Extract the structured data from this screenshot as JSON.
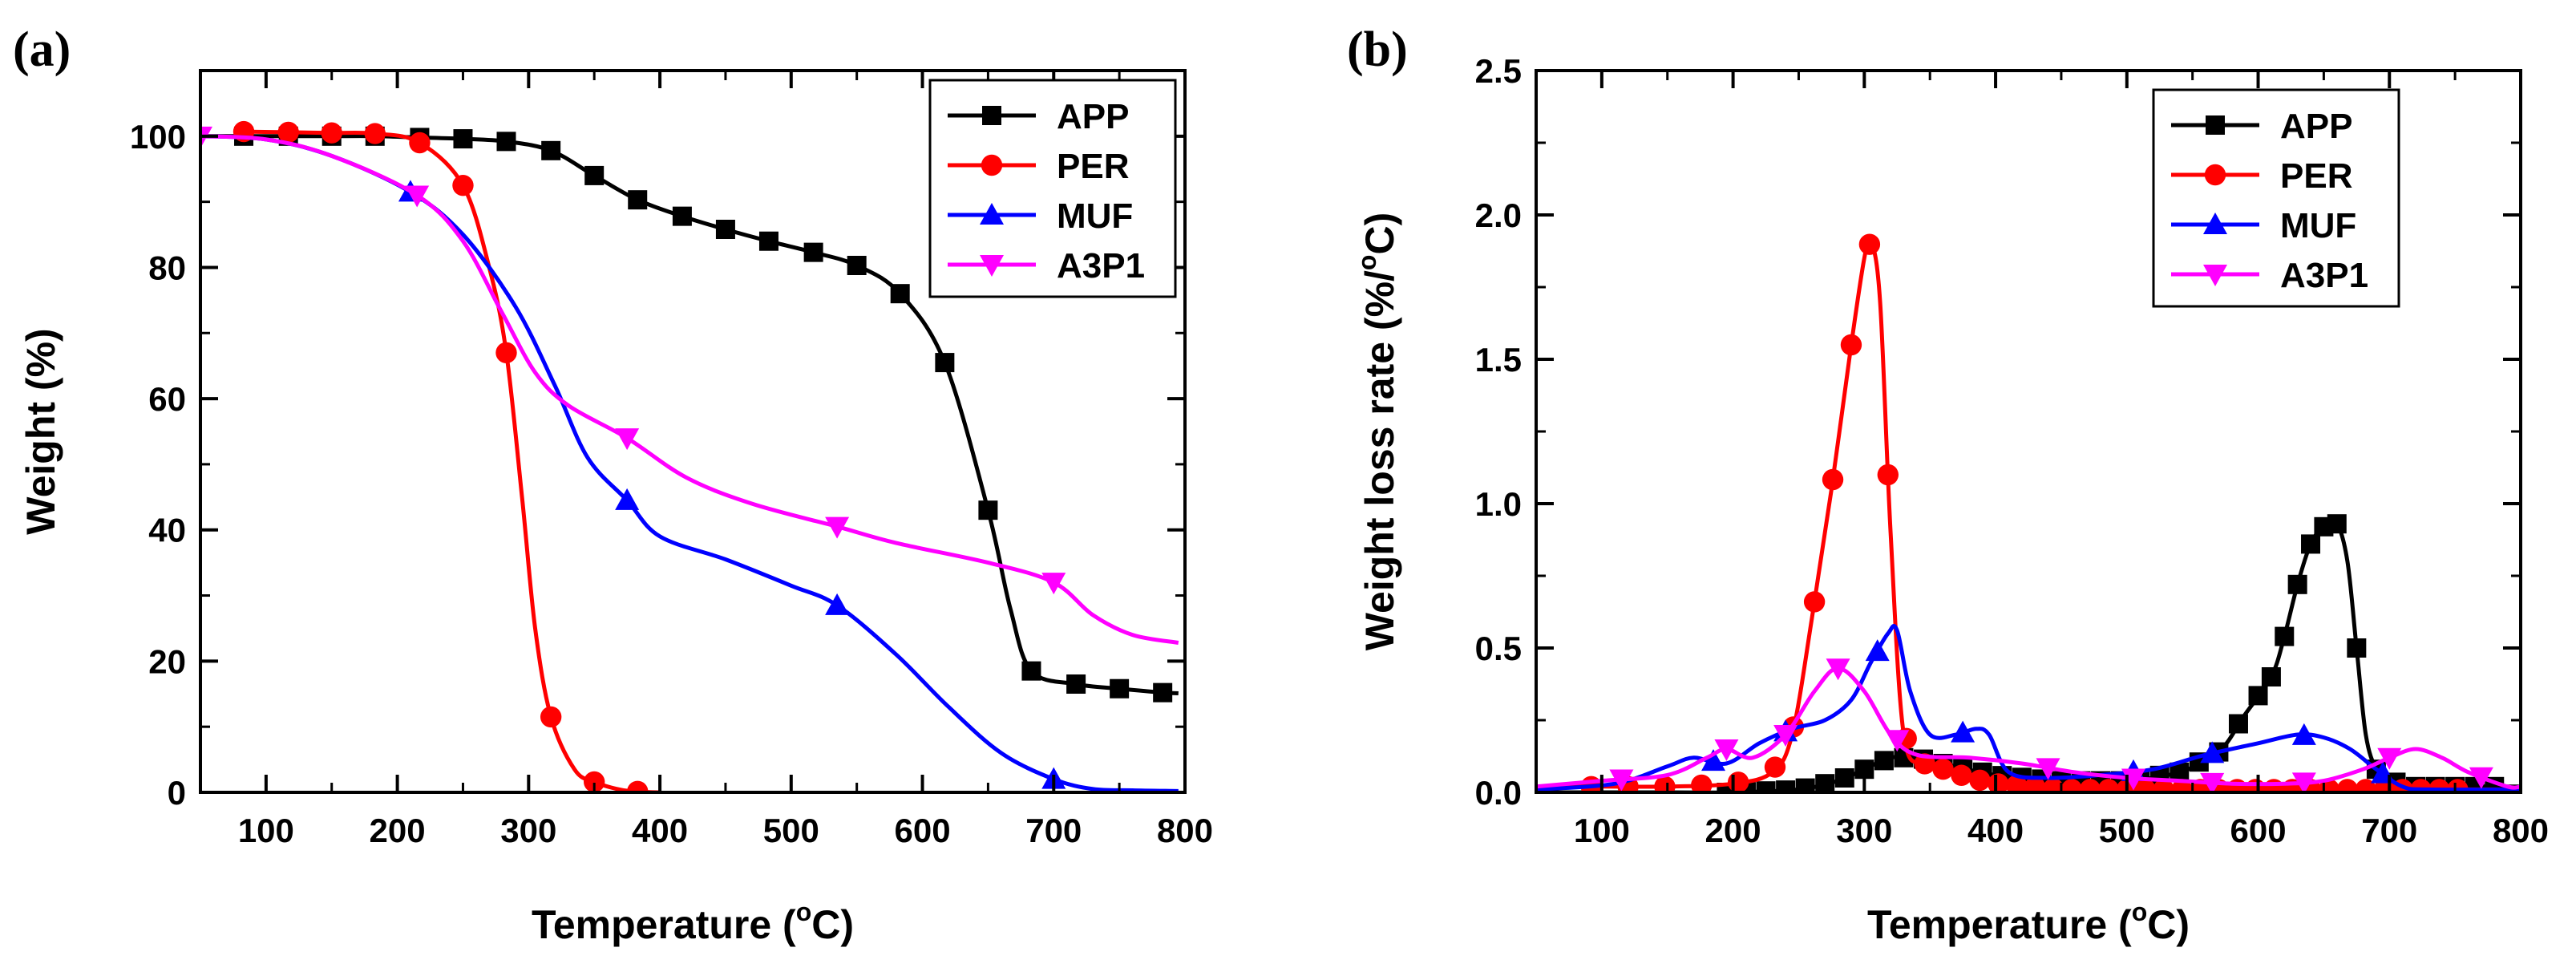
{
  "figure": {
    "panels": [
      {
        "panel_label": "(a)"
      },
      {
        "panel_label": "(b)"
      }
    ]
  },
  "chart_data": [
    {
      "id": "a",
      "type": "line",
      "title": "",
      "panel_label": "(a)",
      "xlabel": "Temperature (°C)",
      "xlabel_parts": [
        "Temperature (",
        "o",
        "C)"
      ],
      "ylabel": "Weight (%)",
      "xlim": [
        50,
        800
      ],
      "ylim": [
        0,
        110
      ],
      "xticks": [
        100,
        200,
        300,
        400,
        500,
        600,
        700,
        800
      ],
      "yticks": [
        0,
        20,
        40,
        60,
        80,
        100
      ],
      "xtick_labels": [
        "100",
        "200",
        "300",
        "400",
        "500",
        "600",
        "700",
        "800"
      ],
      "ytick_labels": [
        "0",
        "20",
        "40",
        "60",
        "80",
        "100"
      ],
      "legend_position": "top-right",
      "series": [
        {
          "name": "APP",
          "color": "#000000",
          "marker": "square",
          "x": [
            50,
            83,
            117,
            150,
            183,
            217,
            250,
            283,
            317,
            350,
            383,
            417,
            450,
            483,
            517,
            550,
            583,
            617,
            650,
            667,
            683,
            717,
            750,
            783,
            795
          ],
          "y": [
            100,
            100,
            100,
            100,
            100,
            99.8,
            99.6,
            99.2,
            97.8,
            94,
            90.3,
            87.8,
            85.8,
            84,
            82.3,
            80.3,
            76,
            65.5,
            43,
            28,
            18.5,
            16.5,
            15.8,
            15.2,
            15.1
          ],
          "marker_x": [
            83,
            117,
            150,
            183,
            217,
            250,
            283,
            317,
            350,
            383,
            417,
            450,
            483,
            517,
            550,
            583,
            617,
            650,
            683,
            717,
            750,
            783
          ]
        },
        {
          "name": "PER",
          "color": "#ff0000",
          "marker": "circle",
          "x": [
            83,
            117,
            150,
            183,
            217,
            250,
            270,
            283,
            295,
            305,
            317,
            335,
            350,
            370,
            385,
            400
          ],
          "y": [
            100.7,
            100.6,
            100.5,
            100.4,
            99,
            92.5,
            80,
            67,
            45,
            25,
            11.5,
            3.5,
            1.6,
            0.4,
            0.1,
            0
          ],
          "marker_x": [
            83,
            117,
            150,
            183,
            217,
            250,
            283,
            317,
            350,
            383
          ]
        },
        {
          "name": "MUF",
          "color": "#0000ff",
          "marker": "triangle-up",
          "x": [
            50,
            100,
            150,
            210,
            250,
            290,
            320,
            345,
            375,
            400,
            450,
            500,
            535,
            580,
            620,
            660,
            700,
            730,
            760,
            795
          ],
          "y": [
            100,
            99.5,
            97,
            91.5,
            85,
            74,
            62,
            51,
            44.5,
            39,
            35.5,
            31.5,
            28.5,
            21,
            13,
            6,
            2,
            0.5,
            0.3,
            0.2
          ],
          "marker_x": [
            210,
            375,
            535,
            700
          ]
        },
        {
          "name": "A3P1",
          "color": "#ff00ff",
          "marker": "triangle-down",
          "x": [
            50,
            100,
            150,
            215,
            250,
            280,
            305,
            330,
            375,
            420,
            470,
            535,
            580,
            650,
            700,
            730,
            760,
            795
          ],
          "y": [
            100,
            99.5,
            97,
            91,
            84,
            73,
            64,
            59,
            54,
            48,
            44,
            40.5,
            38,
            35,
            32,
            27,
            24,
            22.8
          ],
          "marker_x": [
            50,
            215,
            375,
            535,
            700
          ]
        }
      ]
    },
    {
      "id": "b",
      "type": "line",
      "title": "",
      "panel_label": "(b)",
      "xlabel": "Temperature (°C)",
      "xlabel_parts": [
        "Temperature (",
        "o",
        "C)"
      ],
      "ylabel": "Weight loss rate (%/°C)",
      "ylabel_parts": [
        "Weight loss rate (%/",
        "o",
        "C)"
      ],
      "xlim": [
        50,
        800
      ],
      "ylim": [
        0,
        2.5
      ],
      "xticks": [
        100,
        200,
        300,
        400,
        500,
        600,
        700,
        800
      ],
      "yticks": [
        0.0,
        0.5,
        1.0,
        1.5,
        2.0,
        2.5
      ],
      "xtick_labels": [
        "100",
        "200",
        "300",
        "400",
        "500",
        "600",
        "700",
        "800"
      ],
      "ytick_labels": [
        "0.0",
        "0.5",
        "1.0",
        "1.5",
        "2.0",
        "2.5"
      ],
      "legend_position": "top-right",
      "series": [
        {
          "name": "APP",
          "color": "#000000",
          "marker": "square",
          "x": [
            50,
            150,
            200,
            250,
            280,
            300,
            320,
            340,
            360,
            400,
            450,
            500,
            540,
            570,
            590,
            610,
            620,
            630,
            640,
            650,
            660,
            668,
            675,
            682,
            690,
            700,
            720,
            760,
            800
          ],
          "y": [
            0,
            0,
            0,
            0.01,
            0.04,
            0.08,
            0.12,
            0.12,
            0.1,
            0.06,
            0.04,
            0.04,
            0.07,
            0.14,
            0.27,
            0.4,
            0.54,
            0.72,
            0.86,
            0.92,
            0.93,
            0.8,
            0.5,
            0.2,
            0.08,
            0.04,
            0.02,
            0.02,
            0.02
          ],
          "marker_x": [
            195,
            210,
            225,
            240,
            255,
            270,
            285,
            300,
            315,
            330,
            345,
            360,
            375,
            390,
            405,
            420,
            435,
            450,
            465,
            480,
            495,
            510,
            525,
            540,
            555,
            570,
            585,
            600,
            610,
            620,
            630,
            640,
            650,
            660,
            675,
            690,
            705,
            720,
            735,
            750,
            765,
            780
          ]
        },
        {
          "name": "PER",
          "color": "#ff0000",
          "marker": "circle",
          "x": [
            50,
            100,
            150,
            200,
            230,
            245,
            260,
            275,
            290,
            300,
            305,
            312,
            320,
            330,
            345,
            360,
            380,
            400,
            450,
            500,
            600,
            700,
            800
          ],
          "y": [
            0.02,
            0.02,
            0.02,
            0.03,
            0.07,
            0.2,
            0.6,
            1.05,
            1.55,
            1.85,
            1.91,
            1.7,
            0.9,
            0.2,
            0.1,
            0.08,
            0.05,
            0.03,
            0.01,
            0.01,
            0.01,
            0.01,
            0.01
          ],
          "marker_x": [
            92,
            120,
            148,
            176,
            204,
            232,
            246,
            262,
            276,
            290,
            304,
            318,
            332,
            346,
            360,
            374,
            388,
            402,
            416,
            430,
            444,
            458,
            472,
            486,
            500,
            514,
            528,
            542,
            556,
            570,
            584,
            598,
            612,
            626,
            640,
            654,
            668,
            682,
            696,
            710,
            724,
            738,
            752
          ]
        },
        {
          "name": "MUF",
          "color": "#0000ff",
          "marker": "triangle-up",
          "x": [
            50,
            110,
            150,
            170,
            195,
            220,
            245,
            270,
            290,
            305,
            318,
            325,
            335,
            350,
            370,
            385,
            395,
            410,
            440,
            480,
            520,
            560,
            600,
            630,
            650,
            670,
            690,
            710,
            730,
            800
          ],
          "y": [
            0.01,
            0.03,
            0.09,
            0.12,
            0.1,
            0.17,
            0.22,
            0.25,
            0.32,
            0.45,
            0.55,
            0.56,
            0.35,
            0.2,
            0.2,
            0.22,
            0.2,
            0.07,
            0.05,
            0.06,
            0.08,
            0.13,
            0.17,
            0.2,
            0.19,
            0.15,
            0.08,
            0.02,
            0.01,
            0.01
          ],
          "marker_x": [
            185,
            240,
            310,
            375,
            505,
            565,
            635,
            695
          ]
        },
        {
          "name": "A3P1",
          "color": "#ff00ff",
          "marker": "triangle-down",
          "x": [
            50,
            100,
            150,
            180,
            195,
            215,
            240,
            262,
            280,
            300,
            320,
            340,
            380,
            420,
            460,
            500,
            540,
            580,
            620,
            650,
            680,
            700,
            720,
            740,
            760,
            790,
            800
          ],
          "y": [
            0.02,
            0.04,
            0.06,
            0.12,
            0.15,
            0.12,
            0.2,
            0.35,
            0.43,
            0.35,
            0.2,
            0.13,
            0.12,
            0.1,
            0.07,
            0.05,
            0.04,
            0.03,
            0.03,
            0.04,
            0.08,
            0.12,
            0.15,
            0.12,
            0.07,
            0.02,
            0.02
          ],
          "marker_x": [
            115,
            195,
            240,
            280,
            325,
            440,
            505,
            565,
            635,
            700,
            770
          ]
        }
      ]
    }
  ]
}
